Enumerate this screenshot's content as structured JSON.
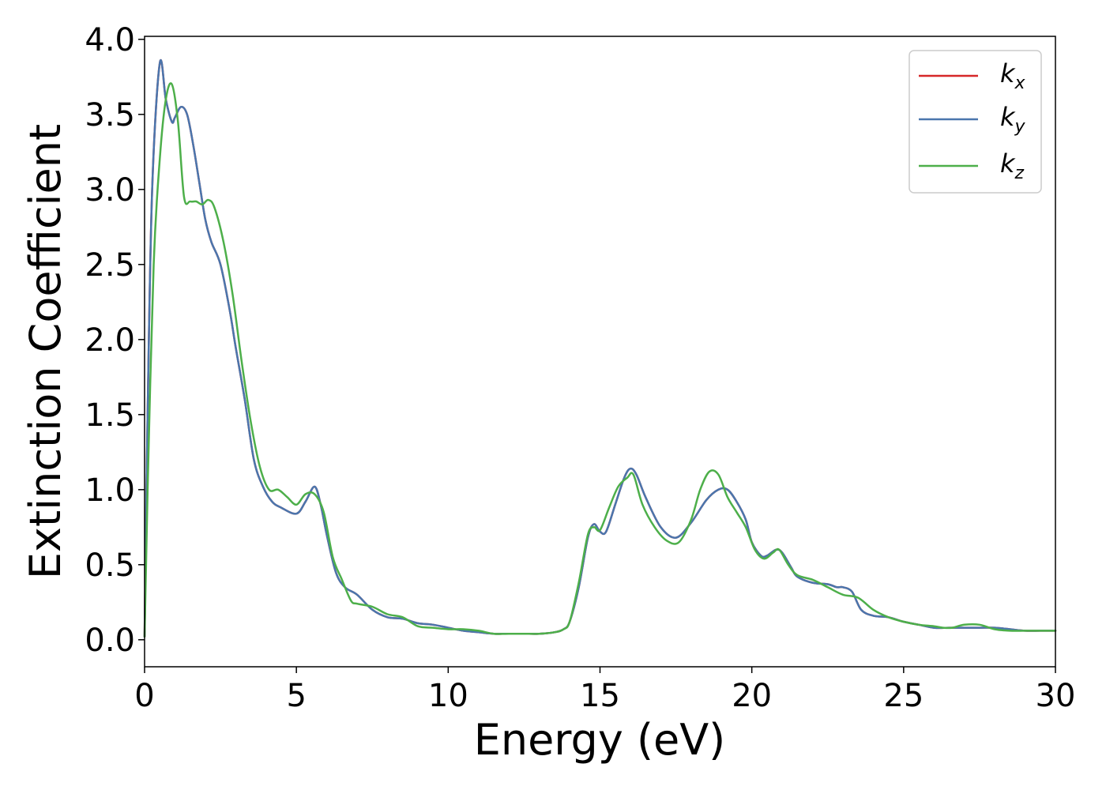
{
  "chart_data": {
    "type": "line",
    "xlabel": "Energy (eV)",
    "ylabel": "Extinction Coefficient",
    "xlim": [
      0,
      30
    ],
    "ylim": [
      -0.18,
      4.02
    ],
    "xticks": [
      0,
      5,
      10,
      15,
      20,
      25,
      30
    ],
    "xtick_labels": [
      "0",
      "5",
      "10",
      "15",
      "20",
      "25",
      "30"
    ],
    "yticks": [
      0.0,
      0.5,
      1.0,
      1.5,
      2.0,
      2.5,
      3.0,
      3.5,
      4.0
    ],
    "ytick_labels": [
      "0.0",
      "0.5",
      "1.0",
      "1.5",
      "2.0",
      "2.5",
      "3.0",
      "3.5",
      "4.0"
    ],
    "grid": false,
    "legend_position": "top-right",
    "series": [
      {
        "name": "k_x",
        "label_main": "k",
        "label_sub": "x",
        "color": "#d62728",
        "x": [
          0,
          0.1,
          0.25,
          0.5,
          0.7,
          0.9,
          1.0,
          1.2,
          1.4,
          1.6,
          1.8,
          2.0,
          2.2,
          2.5,
          2.8,
          3.0,
          3.3,
          3.6,
          3.9,
          4.2,
          4.5,
          5.0,
          5.3,
          5.6,
          5.8,
          6.0,
          6.3,
          6.6,
          7.0,
          7.5,
          8.0,
          8.5,
          9.0,
          9.5,
          10.0,
          10.5,
          11.0,
          11.5,
          12.0,
          12.5,
          13.0,
          13.5,
          13.8,
          14.0,
          14.3,
          14.6,
          14.8,
          15.0,
          15.2,
          15.5,
          15.8,
          16.0,
          16.2,
          16.5,
          17.0,
          17.5,
          18.0,
          18.5,
          18.9,
          19.2,
          19.5,
          19.8,
          20.0,
          20.3,
          20.5,
          20.8,
          21.0,
          21.3,
          21.5,
          22.0,
          22.5,
          22.8,
          23.0,
          23.3,
          23.6,
          24.0,
          24.5,
          25.0,
          25.5,
          26.0,
          26.5,
          27.0,
          27.5,
          28.0,
          28.5,
          29.0,
          29.5,
          30.0
        ],
        "values": [
          0.02,
          1.5,
          3.0,
          3.84,
          3.6,
          3.45,
          3.48,
          3.55,
          3.5,
          3.3,
          3.05,
          2.8,
          2.65,
          2.5,
          2.2,
          1.95,
          1.6,
          1.2,
          1.02,
          0.92,
          0.88,
          0.84,
          0.92,
          1.02,
          0.9,
          0.7,
          0.45,
          0.35,
          0.3,
          0.2,
          0.15,
          0.14,
          0.11,
          0.1,
          0.08,
          0.06,
          0.05,
          0.04,
          0.04,
          0.04,
          0.04,
          0.05,
          0.07,
          0.12,
          0.35,
          0.68,
          0.77,
          0.72,
          0.72,
          0.9,
          1.08,
          1.14,
          1.1,
          0.95,
          0.75,
          0.68,
          0.78,
          0.93,
          1.0,
          1.0,
          0.92,
          0.8,
          0.65,
          0.56,
          0.56,
          0.6,
          0.58,
          0.48,
          0.42,
          0.38,
          0.37,
          0.35,
          0.35,
          0.32,
          0.2,
          0.16,
          0.15,
          0.12,
          0.1,
          0.08,
          0.08,
          0.08,
          0.08,
          0.08,
          0.07,
          0.06,
          0.06,
          0.06
        ]
      },
      {
        "name": "k_y",
        "label_main": "k",
        "label_sub": "y",
        "color": "#4a76ad",
        "x": [
          0,
          0.1,
          0.25,
          0.5,
          0.7,
          0.9,
          1.0,
          1.2,
          1.4,
          1.6,
          1.8,
          2.0,
          2.2,
          2.5,
          2.8,
          3.0,
          3.3,
          3.6,
          3.9,
          4.2,
          4.5,
          5.0,
          5.3,
          5.6,
          5.8,
          6.0,
          6.3,
          6.6,
          7.0,
          7.5,
          8.0,
          8.5,
          9.0,
          9.5,
          10.0,
          10.5,
          11.0,
          11.5,
          12.0,
          12.5,
          13.0,
          13.5,
          13.8,
          14.0,
          14.3,
          14.6,
          14.8,
          15.0,
          15.2,
          15.5,
          15.8,
          16.0,
          16.2,
          16.5,
          17.0,
          17.5,
          18.0,
          18.5,
          18.9,
          19.2,
          19.5,
          19.8,
          20.0,
          20.3,
          20.5,
          20.8,
          21.0,
          21.3,
          21.5,
          22.0,
          22.5,
          22.8,
          23.0,
          23.3,
          23.6,
          24.0,
          24.5,
          25.0,
          25.5,
          26.0,
          26.5,
          27.0,
          27.5,
          28.0,
          28.5,
          29.0,
          29.5,
          30.0
        ],
        "values": [
          0.02,
          1.5,
          3.0,
          3.84,
          3.6,
          3.45,
          3.48,
          3.55,
          3.5,
          3.3,
          3.05,
          2.8,
          2.65,
          2.5,
          2.2,
          1.95,
          1.6,
          1.2,
          1.02,
          0.92,
          0.88,
          0.84,
          0.92,
          1.02,
          0.9,
          0.7,
          0.45,
          0.35,
          0.3,
          0.2,
          0.15,
          0.14,
          0.11,
          0.1,
          0.08,
          0.06,
          0.05,
          0.04,
          0.04,
          0.04,
          0.04,
          0.05,
          0.07,
          0.12,
          0.35,
          0.68,
          0.77,
          0.72,
          0.72,
          0.9,
          1.08,
          1.14,
          1.1,
          0.95,
          0.75,
          0.68,
          0.78,
          0.93,
          1.0,
          1.0,
          0.92,
          0.8,
          0.65,
          0.56,
          0.56,
          0.6,
          0.58,
          0.48,
          0.42,
          0.38,
          0.37,
          0.35,
          0.35,
          0.32,
          0.2,
          0.16,
          0.15,
          0.12,
          0.1,
          0.08,
          0.08,
          0.08,
          0.08,
          0.08,
          0.07,
          0.06,
          0.06,
          0.06
        ]
      },
      {
        "name": "k_z",
        "label_main": "k",
        "label_sub": "z",
        "color": "#4daf4a",
        "x": [
          0,
          0.1,
          0.3,
          0.5,
          0.7,
          0.9,
          1.1,
          1.3,
          1.5,
          1.7,
          1.9,
          2.1,
          2.3,
          2.6,
          2.9,
          3.2,
          3.5,
          3.8,
          4.1,
          4.4,
          4.7,
          5.0,
          5.3,
          5.6,
          5.9,
          6.2,
          6.5,
          6.8,
          7.0,
          7.5,
          8.0,
          8.5,
          9.0,
          9.5,
          10.0,
          10.5,
          11.0,
          11.5,
          12.0,
          12.5,
          13.0,
          13.5,
          13.8,
          14.0,
          14.3,
          14.6,
          14.8,
          15.0,
          15.3,
          15.6,
          15.9,
          16.1,
          16.4,
          16.8,
          17.2,
          17.6,
          18.0,
          18.3,
          18.6,
          18.9,
          19.2,
          19.5,
          19.8,
          20.1,
          20.4,
          20.7,
          20.9,
          21.2,
          21.5,
          22.0,
          22.5,
          23.0,
          23.5,
          24.0,
          24.5,
          25.0,
          25.5,
          26.0,
          26.3,
          26.6,
          27.0,
          27.5,
          28.0,
          28.5,
          29.0,
          29.5,
          30.0
        ],
        "values": [
          0.02,
          1.0,
          2.5,
          3.2,
          3.6,
          3.7,
          3.45,
          2.95,
          2.92,
          2.92,
          2.9,
          2.93,
          2.88,
          2.65,
          2.3,
          1.85,
          1.45,
          1.15,
          1.0,
          1.0,
          0.95,
          0.9,
          0.97,
          0.97,
          0.85,
          0.55,
          0.4,
          0.26,
          0.24,
          0.22,
          0.17,
          0.15,
          0.09,
          0.08,
          0.07,
          0.07,
          0.06,
          0.04,
          0.04,
          0.04,
          0.04,
          0.05,
          0.07,
          0.12,
          0.38,
          0.7,
          0.75,
          0.73,
          0.88,
          1.02,
          1.08,
          1.1,
          0.9,
          0.75,
          0.66,
          0.65,
          0.8,
          1.0,
          1.12,
          1.1,
          0.95,
          0.85,
          0.75,
          0.6,
          0.54,
          0.58,
          0.6,
          0.5,
          0.43,
          0.4,
          0.35,
          0.3,
          0.28,
          0.2,
          0.15,
          0.12,
          0.1,
          0.09,
          0.08,
          0.08,
          0.1,
          0.1,
          0.07,
          0.06,
          0.06,
          0.06,
          0.06
        ]
      }
    ]
  }
}
